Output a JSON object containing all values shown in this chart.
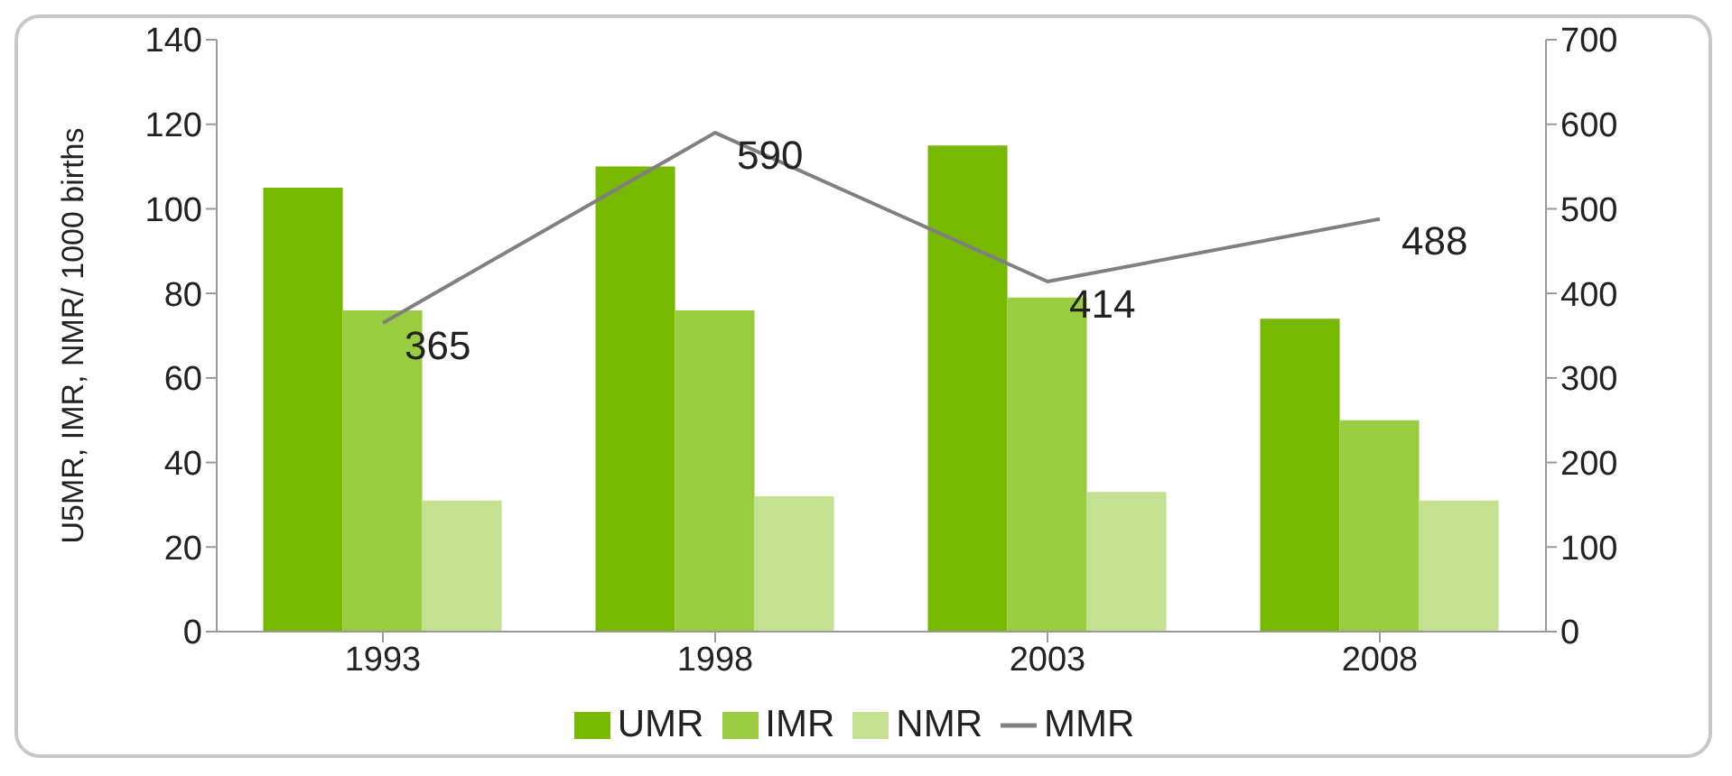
{
  "chart_data": {
    "type": "bar",
    "ylabel": "U5MR, IMR, NMR/ 1000 births",
    "categories": [
      "1993",
      "1998",
      "2003",
      "2008"
    ],
    "series": [
      {
        "name": "UMR",
        "color": "#77b800",
        "values": [
          105,
          110,
          115,
          74
        ]
      },
      {
        "name": "IMR",
        "color": "#99cc40",
        "values": [
          76,
          76,
          79,
          50
        ]
      },
      {
        "name": "NMR",
        "color": "#c4e191",
        "values": [
          31,
          32,
          33,
          31
        ]
      },
      {
        "name": "MMR",
        "type": "line",
        "axis": "y2",
        "color": "#808080",
        "values": [
          365,
          590,
          414,
          488
        ],
        "value_labels": [
          "365",
          "590",
          "414",
          "488"
        ]
      }
    ],
    "ylim": [
      0,
      140
    ],
    "yticks": [
      0,
      20,
      40,
      60,
      80,
      100,
      120,
      140
    ],
    "y2lim": [
      0,
      700
    ],
    "y2ticks": [
      0,
      100,
      200,
      300,
      400,
      500,
      600,
      700
    ],
    "legend": "bottom",
    "marker": "none"
  }
}
